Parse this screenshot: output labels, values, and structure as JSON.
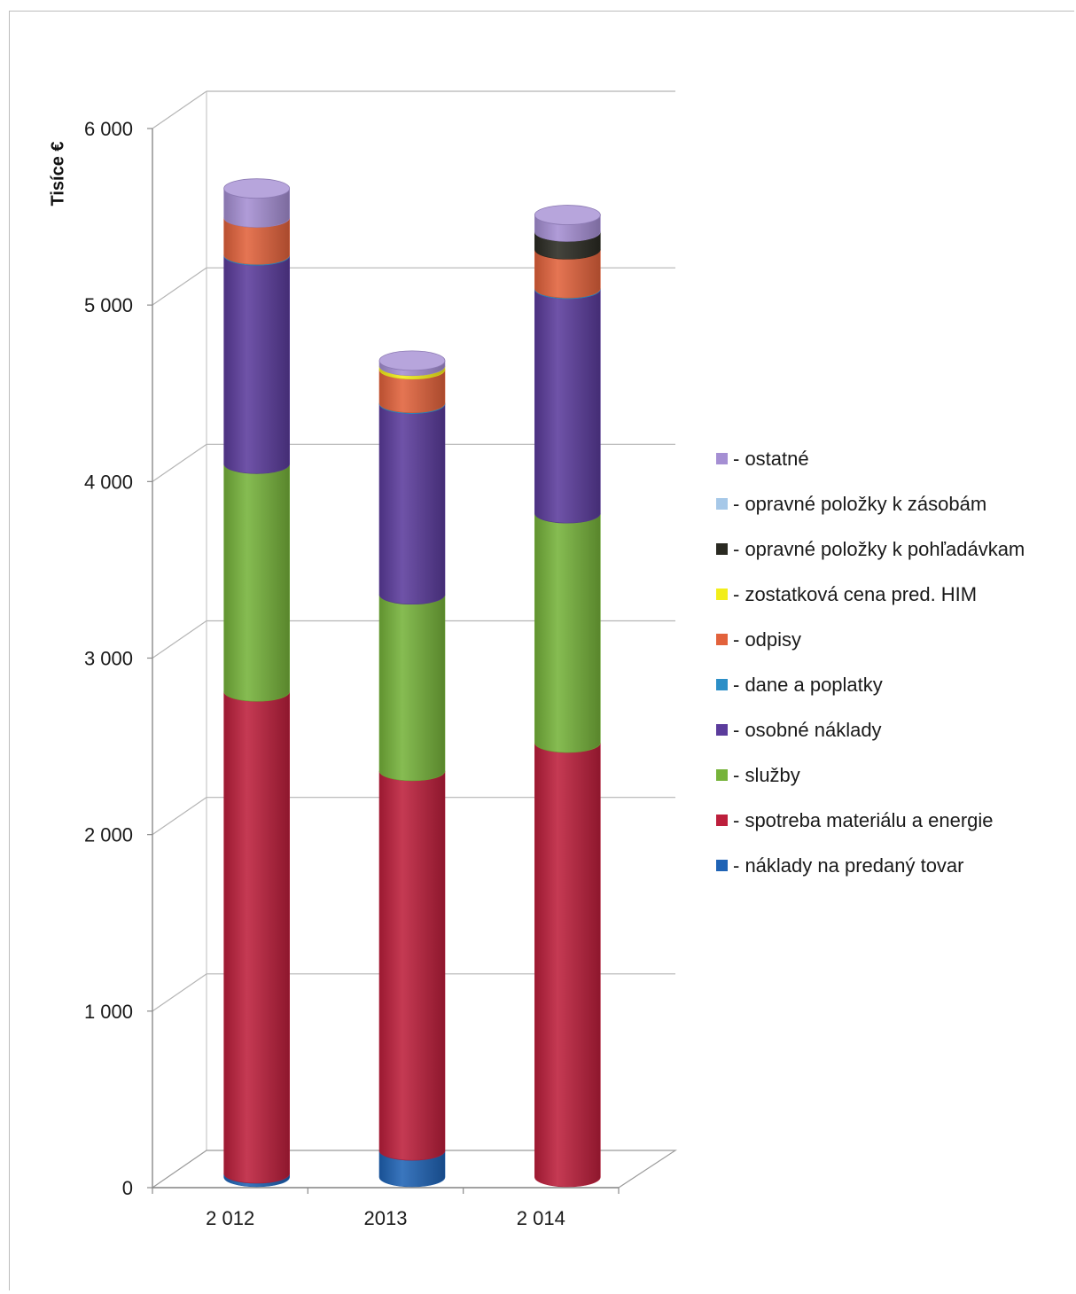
{
  "chart_data": {
    "type": "bar",
    "stacked": true,
    "style": "3d-cylinder",
    "ylabel": "Tisíce €",
    "xlabel": "",
    "title": "",
    "ylim": [
      0,
      6000
    ],
    "yticks": [
      0,
      1000,
      2000,
      3000,
      4000,
      5000,
      6000
    ],
    "ytick_labels": [
      "0",
      "1 000",
      "2 000",
      "3 000",
      "4 000",
      "5 000",
      "6 000"
    ],
    "categories": [
      "2 012",
      "2013",
      "2 014"
    ],
    "legend_position": "right",
    "grid": true,
    "series": [
      {
        "name": "- náklady na predaný tovar",
        "color": "#1f63b5",
        "values": [
          20,
          150,
          0
        ]
      },
      {
        "name": "- spotreba materiálu a energie",
        "color": "#bd1f3c",
        "values": [
          2730,
          2150,
          2460
        ]
      },
      {
        "name": "- služby",
        "color": "#76b33a",
        "values": [
          1290,
          1000,
          1300
        ]
      },
      {
        "name": "- osobné náklady",
        "color": "#5b3c9c",
        "values": [
          1180,
          1080,
          1270
        ]
      },
      {
        "name": "- dane a poplatky",
        "color": "#2c8fc7",
        "values": [
          5,
          5,
          5
        ]
      },
      {
        "name": "- odpisy",
        "color": "#e2623c",
        "values": [
          210,
          190,
          220
        ]
      },
      {
        "name": "- zostatková cena pred. HIM",
        "color": "#f2ee1a",
        "values": [
          0,
          20,
          0
        ]
      },
      {
        "name": "- opravné položky k pohľadávkam",
        "color": "#2a2a22",
        "values": [
          0,
          0,
          100
        ]
      },
      {
        "name": "- opravné položky k zásobám",
        "color": "#a6c8e8",
        "values": [
          0,
          0,
          0
        ]
      },
      {
        "name": "- ostatné",
        "color": "#a58fd3",
        "values": [
          165,
          30,
          95
        ]
      }
    ],
    "legend_order": [
      9,
      8,
      7,
      6,
      5,
      4,
      3,
      2,
      1,
      0
    ]
  }
}
